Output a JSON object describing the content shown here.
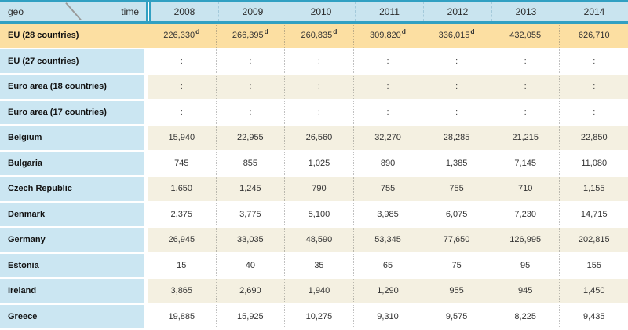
{
  "colors": {
    "teal_border": "#31a0c2",
    "header_blue": "#c9e4ef",
    "label_blue": "#cbe6f2",
    "highlight_orange": "#fcdfa2",
    "zebra_cream": "#f4f0e1",
    "zebra_white": "#ffffff"
  },
  "table": {
    "corner": {
      "geo_label": "geo",
      "time_label": "time"
    },
    "years": [
      "2008",
      "2009",
      "2010",
      "2011",
      "2012",
      "2013",
      "2014"
    ],
    "not_available_symbol": ":",
    "rows": [
      {
        "label": "EU (28 countries)",
        "highlight": true,
        "values": [
          "226,330",
          "266,395",
          "260,835",
          "309,820",
          "336,015",
          "432,055",
          "626,710"
        ],
        "flags": [
          "d",
          "d",
          "d",
          "d",
          "d",
          "",
          ""
        ]
      },
      {
        "label": "EU (27 countries)",
        "values": [
          ":",
          ":",
          ":",
          ":",
          ":",
          ":",
          ":"
        ]
      },
      {
        "label": "Euro area (18 countries)",
        "values": [
          ":",
          ":",
          ":",
          ":",
          ":",
          ":",
          ":"
        ]
      },
      {
        "label": "Euro area (17 countries)",
        "values": [
          ":",
          ":",
          ":",
          ":",
          ":",
          ":",
          ":"
        ]
      },
      {
        "label": "Belgium",
        "values": [
          "15,940",
          "22,955",
          "26,560",
          "32,270",
          "28,285",
          "21,215",
          "22,850"
        ]
      },
      {
        "label": "Bulgaria",
        "values": [
          "745",
          "855",
          "1,025",
          "890",
          "1,385",
          "7,145",
          "11,080"
        ]
      },
      {
        "label": "Czech Republic",
        "values": [
          "1,650",
          "1,245",
          "790",
          "755",
          "755",
          "710",
          "1,155"
        ]
      },
      {
        "label": "Denmark",
        "values": [
          "2,375",
          "3,775",
          "5,100",
          "3,985",
          "6,075",
          "7,230",
          "14,715"
        ]
      },
      {
        "label": "Germany",
        "values": [
          "26,945",
          "33,035",
          "48,590",
          "53,345",
          "77,650",
          "126,995",
          "202,815"
        ]
      },
      {
        "label": "Estonia",
        "values": [
          "15",
          "40",
          "35",
          "65",
          "75",
          "95",
          "155"
        ]
      },
      {
        "label": "Ireland",
        "values": [
          "3,865",
          "2,690",
          "1,940",
          "1,290",
          "955",
          "945",
          "1,450"
        ]
      },
      {
        "label": "Greece",
        "values": [
          "19,885",
          "15,925",
          "10,275",
          "9,310",
          "9,575",
          "8,225",
          "9,435"
        ]
      }
    ]
  }
}
